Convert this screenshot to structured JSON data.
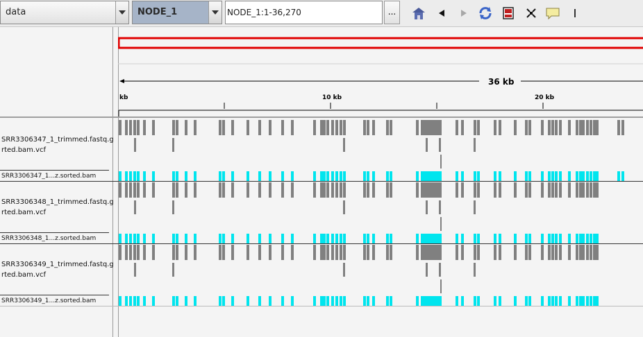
{
  "toolbar": {
    "genome": "data",
    "chromosome": "NODE_1",
    "locus": "NODE_1:1-36,270",
    "more_label": "...",
    "icons": [
      "home-icon",
      "back-icon",
      "forward-icon",
      "refresh-icon",
      "region-icon",
      "fit-icon",
      "popup-info-icon",
      "divider-icon"
    ]
  },
  "ruler": {
    "span_label": "36 kb",
    "tick_labels": [
      "kb",
      "10 kb",
      "20 kb"
    ]
  },
  "tracks": {
    "vcf1": {
      "label_line1": "SRR3306347_1_trimmed.fastq.g",
      "label_line2": "rted.bam.vcf"
    },
    "bam1": {
      "label": "SRR3306347_1...z.sorted.bam"
    },
    "vcf2": {
      "label_line1": "SRR3306348_1_trimmed.fastq.g",
      "label_line2": "rted.bam.vcf"
    },
    "bam2": {
      "label": "SRR3306348_1...z.sorted.bam"
    },
    "vcf3": {
      "label_line1": "SRR3306349_1_trimmed.fastq.g",
      "label_line2": "rted.bam.vcf"
    },
    "bam3": {
      "label": "SRR3306349_1...z.sorted.bam"
    }
  },
  "colors": {
    "variant": "#808080",
    "coverage": "#00e5ee",
    "region": "#e00000"
  }
}
